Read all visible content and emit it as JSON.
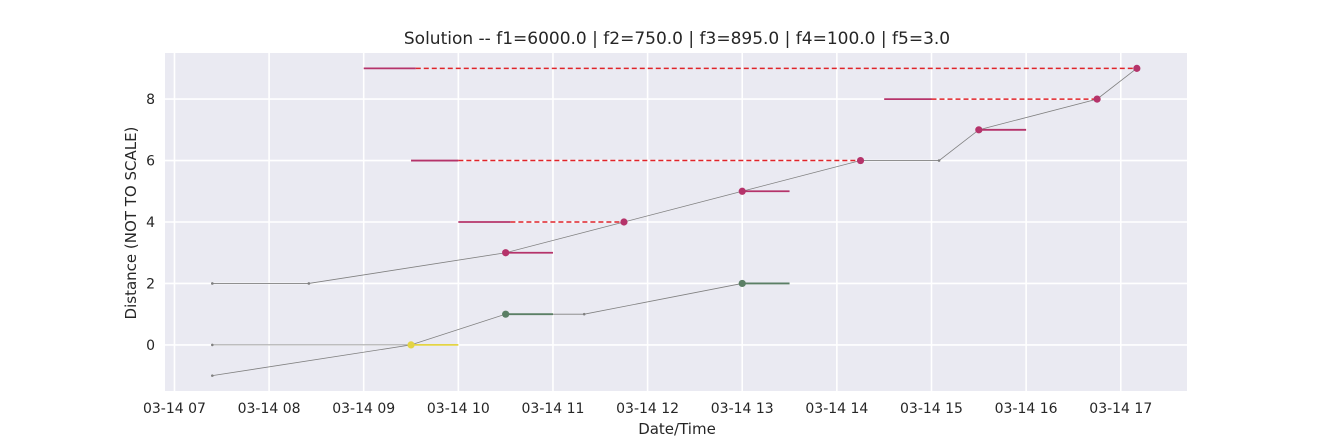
{
  "chart_data": {
    "type": "line",
    "title": "Solution -- f1=6000.0 | f2=750.0 | f3=895.0 | f4=100.0 | f5=3.0",
    "xlabel": "Date/Time",
    "ylabel": "Distance (NOT TO SCALE)",
    "x_unit": "hour of day, 14 March",
    "xlim": [
      6.9,
      17.7
    ],
    "ylim": [
      -1.5,
      9.5
    ],
    "xticks": [
      {
        "value": 7,
        "label": "03-14 07"
      },
      {
        "value": 8,
        "label": "03-14 08"
      },
      {
        "value": 9,
        "label": "03-14 09"
      },
      {
        "value": 10,
        "label": "03-14 10"
      },
      {
        "value": 11,
        "label": "03-14 11"
      },
      {
        "value": 12,
        "label": "03-14 12"
      },
      {
        "value": 13,
        "label": "03-14 13"
      },
      {
        "value": 14,
        "label": "03-14 14"
      },
      {
        "value": 15,
        "label": "03-14 15"
      },
      {
        "value": 16,
        "label": "03-14 16"
      },
      {
        "value": 17,
        "label": "03-14 17"
      }
    ],
    "yticks": [
      0,
      2,
      4,
      6,
      8
    ],
    "grid": true,
    "colors": {
      "background": "#eaeaf2",
      "grid": "#ffffff",
      "route": "#808080",
      "magenta": "#b5336a",
      "green": "#5b7f65",
      "yellow": "#e3d444",
      "dashed": "#e0242a"
    },
    "routes": [
      {
        "points": [
          [
            7.4,
            2
          ],
          [
            8.42,
            2
          ],
          [
            10.5,
            3
          ],
          [
            11.75,
            4
          ],
          [
            13.0,
            5
          ],
          [
            14.25,
            6
          ],
          [
            15.08,
            6
          ],
          [
            15.5,
            7
          ],
          [
            16.75,
            8
          ],
          [
            17.17,
            9
          ]
        ]
      },
      {
        "points": [
          [
            7.4,
            0
          ],
          [
            9.5,
            0
          ],
          [
            10.5,
            1
          ],
          [
            11.33,
            1
          ],
          [
            13.0,
            2
          ]
        ]
      },
      {
        "points": [
          [
            7.4,
            -1
          ],
          [
            9.5,
            0
          ]
        ]
      }
    ],
    "small_markers": [
      [
        7.4,
        2
      ],
      [
        8.42,
        2
      ],
      [
        15.08,
        6
      ],
      [
        7.4,
        0
      ],
      [
        11.33,
        1
      ],
      [
        7.4,
        -1
      ]
    ],
    "windows": [
      {
        "color": "magenta",
        "y": 9,
        "x_start": 9.0,
        "x_end": 9.55,
        "dashed_to": 17.17
      },
      {
        "color": "magenta",
        "y": 8,
        "x_start": 14.5,
        "x_end": 15.0,
        "dashed_to": 16.75
      },
      {
        "color": "magenta",
        "y": 7,
        "x_start": 15.5,
        "x_end": 16.0
      },
      {
        "color": "magenta",
        "y": 6,
        "x_start": 9.5,
        "x_end": 10.0,
        "dashed_to": 14.25
      },
      {
        "color": "magenta",
        "y": 5,
        "x_start": 13.0,
        "x_end": 13.5
      },
      {
        "color": "magenta",
        "y": 4,
        "x_start": 10.0,
        "x_end": 10.55,
        "dashed_to": 11.75
      },
      {
        "color": "magenta",
        "y": 3,
        "x_start": 10.5,
        "x_end": 11.0
      },
      {
        "color": "green",
        "y": 2,
        "x_start": 13.0,
        "x_end": 13.5
      },
      {
        "color": "green",
        "y": 1,
        "x_start": 10.5,
        "x_end": 11.0
      },
      {
        "color": "yellow",
        "y": 0,
        "x_start": 9.5,
        "x_end": 10.0
      }
    ],
    "stops": [
      {
        "color": "magenta",
        "x": 17.17,
        "y": 9
      },
      {
        "color": "magenta",
        "x": 16.75,
        "y": 8
      },
      {
        "color": "magenta",
        "x": 15.5,
        "y": 7
      },
      {
        "color": "magenta",
        "x": 14.25,
        "y": 6
      },
      {
        "color": "magenta",
        "x": 13.0,
        "y": 5
      },
      {
        "color": "magenta",
        "x": 11.75,
        "y": 4
      },
      {
        "color": "magenta",
        "x": 10.5,
        "y": 3
      },
      {
        "color": "green",
        "x": 13.0,
        "y": 2
      },
      {
        "color": "green",
        "x": 10.5,
        "y": 1
      },
      {
        "color": "yellow",
        "x": 9.5,
        "y": 0
      }
    ]
  }
}
